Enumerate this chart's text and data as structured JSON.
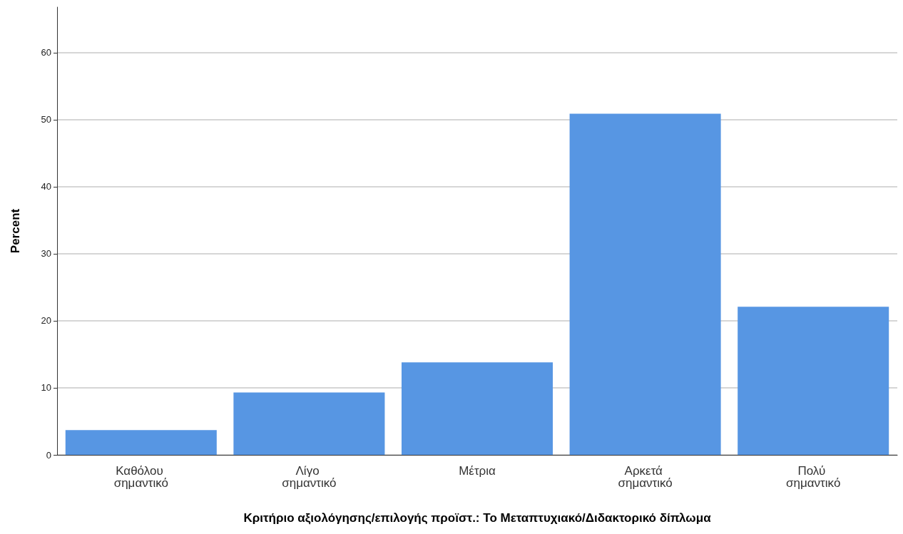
{
  "chart_data": {
    "type": "bar",
    "xlabel": "Κριτήριο αξιολόγησης/επιλογής προϊστ.: Το Μεταπτυχιακό/Διδακτορικό δίπλωμα",
    "ylabel": "Percent",
    "categories": [
      "Καθόλου σημαντικό",
      "Λίγο σημαντικό",
      "Μέτρια",
      "Αρκετά σημαντικό",
      "Πολύ σημαντικό"
    ],
    "values": [
      3.7,
      9.3,
      13.8,
      50.9,
      22.1
    ],
    "color": "#5796e3",
    "ylim": [
      0,
      66.8
    ],
    "yticks": [
      0,
      10,
      20,
      30,
      40,
      50,
      60
    ],
    "grid": "y"
  }
}
